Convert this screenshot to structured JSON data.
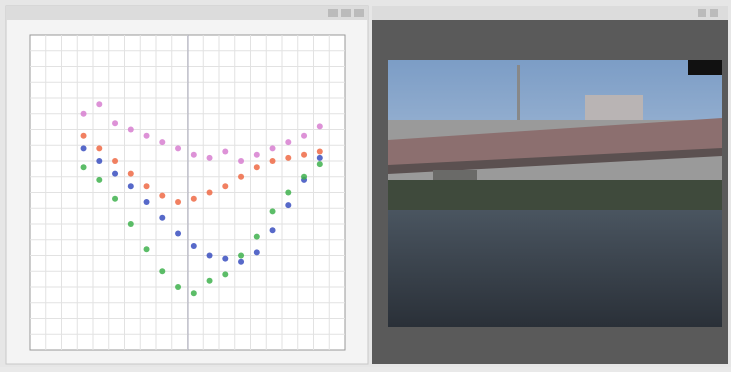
{
  "chart_data": {
    "type": "scatter",
    "x": [
      17,
      22,
      27,
      32,
      37,
      42,
      47,
      52,
      57,
      62,
      67,
      72,
      77,
      82,
      87,
      92
    ],
    "xlim": [
      0,
      100
    ],
    "ylim": [
      0,
      100
    ],
    "grid": true,
    "series": [
      {
        "color": "#d77fd0",
        "values": [
          75,
          78,
          72,
          70,
          68,
          66,
          64,
          62,
          61,
          63,
          60,
          62,
          64,
          66,
          68,
          71
        ]
      },
      {
        "color": "#ee6a45",
        "values": [
          68,
          64,
          60,
          56,
          52,
          49,
          47,
          48,
          50,
          52,
          55,
          58,
          60,
          61,
          62,
          63
        ]
      },
      {
        "color": "#3a4fc0",
        "values": [
          64,
          60,
          56,
          52,
          47,
          42,
          37,
          33,
          30,
          29,
          28,
          31,
          38,
          46,
          54,
          61
        ]
      },
      {
        "color": "#3fb14e",
        "values": [
          58,
          54,
          48,
          40,
          32,
          25,
          20,
          18,
          22,
          24,
          30,
          36,
          44,
          50,
          55,
          59
        ]
      }
    ]
  }
}
